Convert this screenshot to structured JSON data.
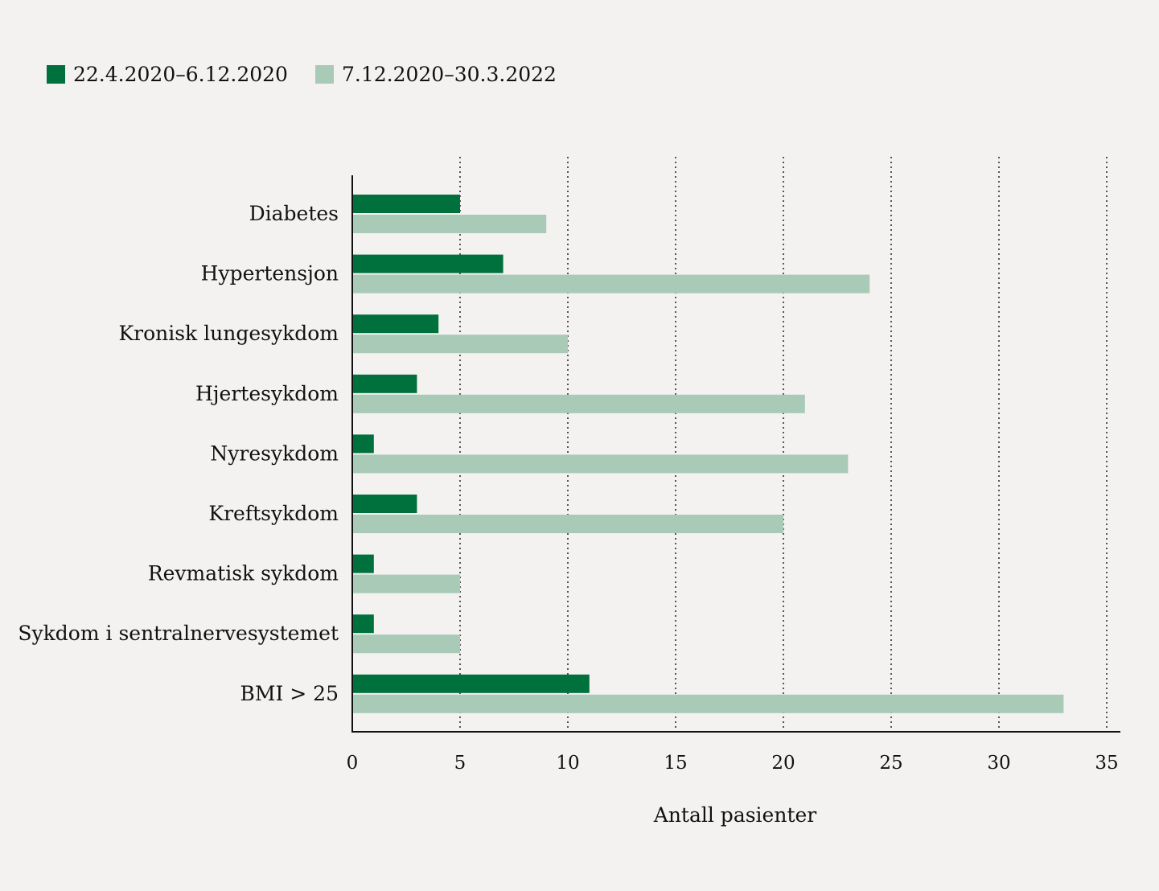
{
  "chart_data": {
    "type": "bar",
    "orientation": "horizontal",
    "title": "",
    "xlabel": "Antall pasienter",
    "ylabel": "",
    "xlim": [
      0,
      35
    ],
    "xticks": [
      0,
      5,
      10,
      15,
      20,
      25,
      30,
      35
    ],
    "grid": "vertical dotted",
    "legend_position": "top-left",
    "categories": [
      "Diabetes",
      "Hypertensjon",
      "Kronisk lungesykdom",
      "Hjertesykdom",
      "Nyresykdom",
      "Kreftsykdom",
      "Revmatisk sykdom",
      "Sykdom i sentralnervesystemet",
      "BMI > 25"
    ],
    "series": [
      {
        "name": "22.4.2020–6.12.2020",
        "color": "#00703c",
        "values": [
          5,
          7,
          4,
          3,
          1,
          3,
          1,
          1,
          11
        ]
      },
      {
        "name": "7.12.2020–30.3.2022",
        "color": "#a8cab6",
        "values": [
          9,
          24,
          10,
          21,
          23,
          20,
          5,
          5,
          33
        ]
      }
    ]
  }
}
